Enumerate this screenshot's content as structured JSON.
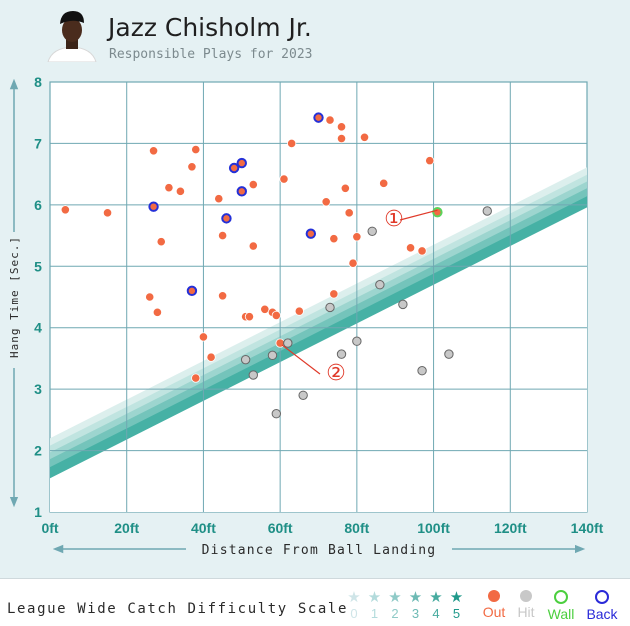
{
  "header": {
    "player_name": "Jazz Chisholm Jr.",
    "subtitle": "Responsible Plays for 2023"
  },
  "colors": {
    "background": "#e5f1f3",
    "grid": "#6fa8b2",
    "axis_text": "#1f8f86",
    "out": "#f26a43",
    "hit": "#c8c8c8",
    "wall": "#5ad35a",
    "back": "#2430d8",
    "band": "#1fa394"
  },
  "chart_data": {
    "type": "scatter",
    "xlabel": "Distance From Ball Landing",
    "ylabel": "Hang Time [Sec.]",
    "xlim": [
      0,
      140
    ],
    "ylim": [
      1,
      8
    ],
    "x_ticks": [
      "0ft",
      "20ft",
      "40ft",
      "60ft",
      "80ft",
      "100ft",
      "120ft",
      "140ft"
    ],
    "y_ticks": [
      "1",
      "2",
      "3",
      "4",
      "5",
      "6",
      "7",
      "8"
    ],
    "grid": true,
    "difficulty_bands": {
      "slope": 0.0315,
      "intercepts": [
        1.55,
        1.73,
        1.86,
        1.97,
        2.08,
        2.2
      ]
    },
    "series": [
      {
        "name": "Out",
        "points": [
          [
            4,
            5.92
          ],
          [
            15,
            5.87
          ],
          [
            26,
            4.5
          ],
          [
            27,
            6.88
          ],
          [
            28,
            4.25
          ],
          [
            29,
            5.4
          ],
          [
            31,
            6.28
          ],
          [
            34,
            6.22
          ],
          [
            37,
            6.62
          ],
          [
            38,
            6.9
          ],
          [
            38,
            3.18
          ],
          [
            40,
            3.85
          ],
          [
            42,
            3.52
          ],
          [
            44,
            6.1
          ],
          [
            45,
            4.52
          ],
          [
            45,
            5.5
          ],
          [
            51,
            4.18
          ],
          [
            52,
            4.18
          ],
          [
            53,
            5.33
          ],
          [
            53,
            6.33
          ],
          [
            56,
            4.3
          ],
          [
            58,
            4.25
          ],
          [
            59,
            4.2
          ],
          [
            60,
            3.75
          ],
          [
            61,
            6.42
          ],
          [
            63,
            7.0
          ],
          [
            65,
            4.27
          ],
          [
            72,
            6.05
          ],
          [
            73,
            7.38
          ],
          [
            74,
            4.55
          ],
          [
            74,
            5.45
          ],
          [
            76,
            7.08
          ],
          [
            76,
            7.27
          ],
          [
            77,
            6.27
          ],
          [
            78,
            5.87
          ],
          [
            79,
            5.05
          ],
          [
            80,
            5.48
          ],
          [
            82,
            7.1
          ],
          [
            87,
            6.35
          ],
          [
            94,
            5.3
          ],
          [
            97,
            5.25
          ],
          [
            99,
            6.72
          ]
        ]
      },
      {
        "name": "Hit",
        "points": [
          [
            51,
            3.48
          ],
          [
            53,
            3.23
          ],
          [
            58,
            3.55
          ],
          [
            59,
            2.6
          ],
          [
            62,
            3.75
          ],
          [
            66,
            2.9
          ],
          [
            73,
            4.33
          ],
          [
            76,
            3.57
          ],
          [
            80,
            3.78
          ],
          [
            84,
            5.57
          ],
          [
            86,
            4.7
          ],
          [
            92,
            4.38
          ],
          [
            97,
            3.3
          ],
          [
            104,
            3.57
          ],
          [
            114,
            5.9
          ]
        ]
      },
      {
        "name": "Wall",
        "points": [
          [
            101,
            5.88
          ]
        ]
      },
      {
        "name": "Back",
        "points": [
          [
            27,
            5.97
          ],
          [
            37,
            4.6
          ],
          [
            46,
            5.78
          ],
          [
            48,
            6.6
          ],
          [
            50,
            6.22
          ],
          [
            50,
            6.68
          ],
          [
            68,
            5.53
          ],
          [
            70,
            7.42
          ]
        ]
      }
    ],
    "annotations": [
      {
        "label": "①",
        "x": 101,
        "y": 5.88
      },
      {
        "label": "②",
        "x": 60,
        "y": 3.75
      }
    ]
  },
  "footer": {
    "scale_label": "League Wide Catch Difficulty Scale",
    "stars": [
      {
        "num": "0",
        "color": "#cfe5e8"
      },
      {
        "num": "1",
        "color": "#b3dbdc"
      },
      {
        "num": "2",
        "color": "#8fcac7"
      },
      {
        "num": "3",
        "color": "#6dbab4"
      },
      {
        "num": "4",
        "color": "#47ab9f"
      },
      {
        "num": "5",
        "color": "#1f998a"
      }
    ],
    "legend": [
      {
        "label": "Out",
        "color": "#f26a43",
        "style": "filled"
      },
      {
        "label": "Hit",
        "color": "#c8c8c8",
        "style": "filled"
      },
      {
        "label": "Wall",
        "color": "#4ccf3f",
        "style": "ring"
      },
      {
        "label": "Back",
        "color": "#2a2ad8",
        "style": "ring"
      }
    ]
  }
}
